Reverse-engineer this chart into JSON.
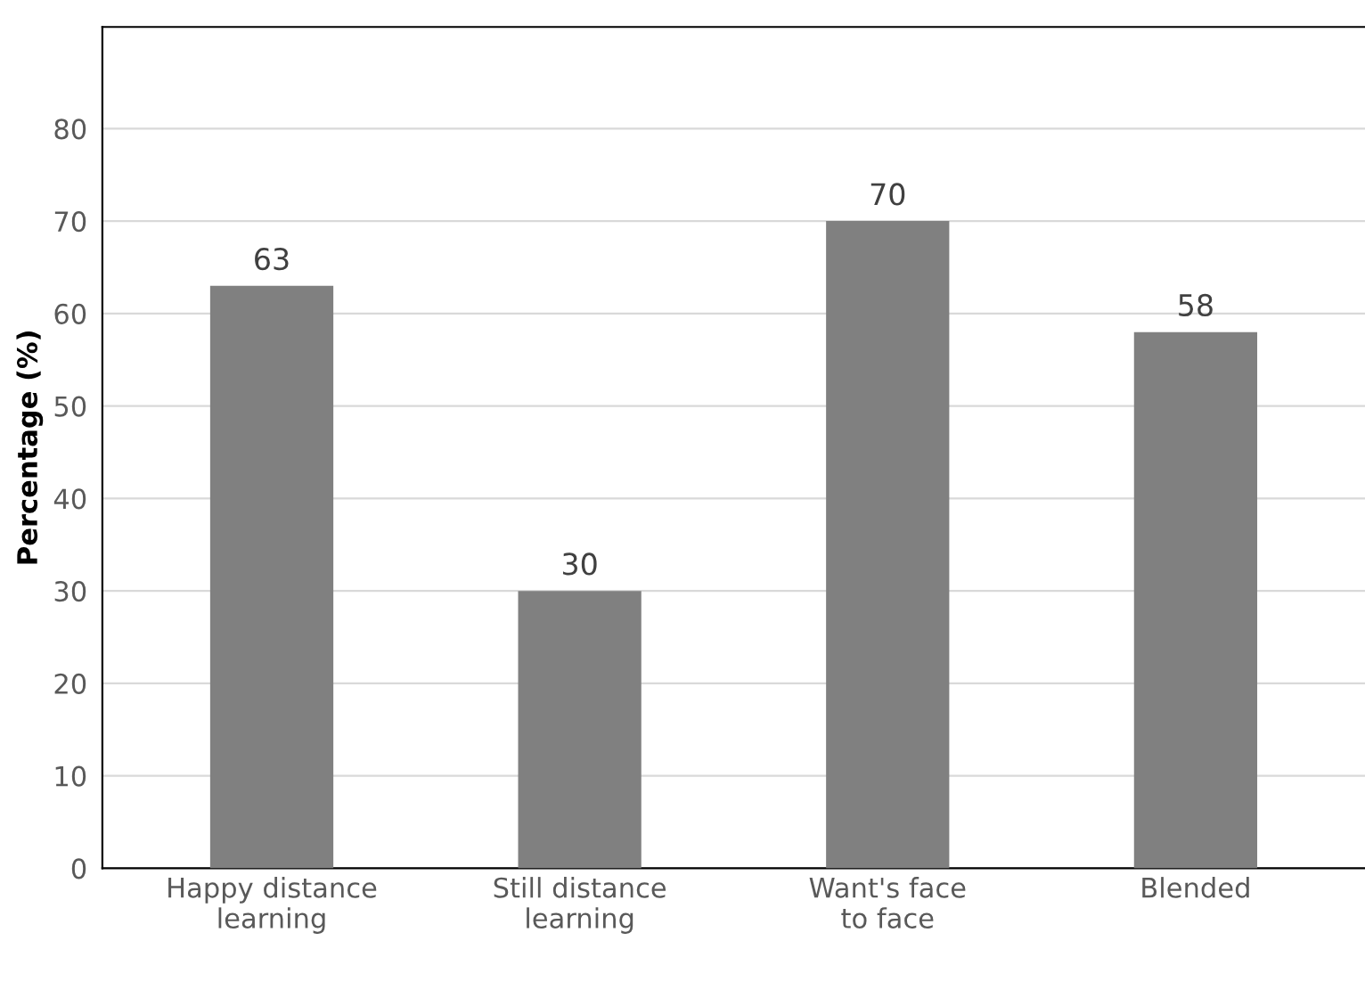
{
  "chart_data": {
    "type": "bar",
    "ylabel": "Percentage (%)",
    "categories": [
      "Happy distance learning",
      "Still distance learning",
      "Want's face to face",
      "Blended"
    ],
    "values": [
      63,
      30,
      70,
      58
    ],
    "color": "#808080",
    "ylim": [
      0,
      91
    ],
    "yticks": [
      0,
      10,
      20,
      30,
      40,
      50,
      60,
      70,
      80
    ],
    "grid": "y",
    "data_labels": true
  }
}
